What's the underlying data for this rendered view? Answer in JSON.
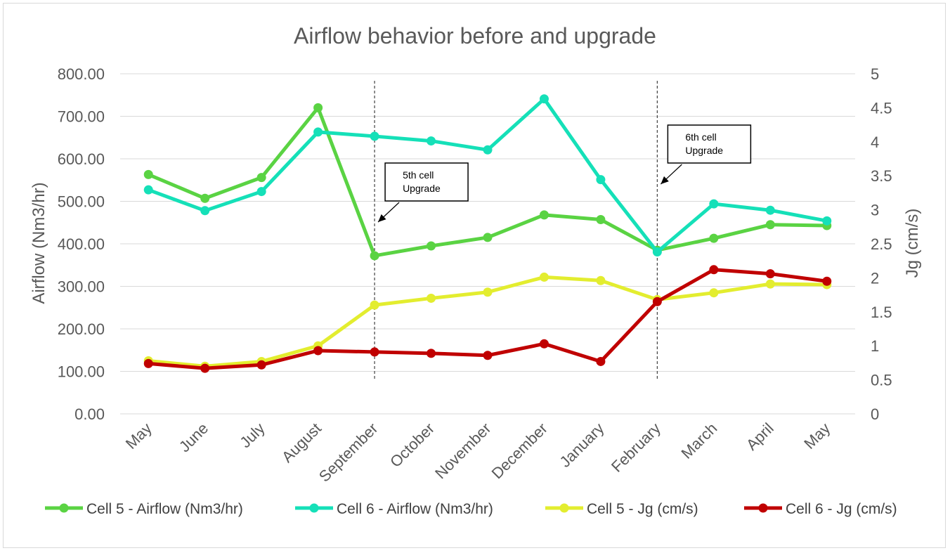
{
  "chart_data": {
    "type": "line",
    "title": "Airflow behavior before and upgrade",
    "categories": [
      "May",
      "June",
      "July",
      "August",
      "September",
      "October",
      "November",
      "December",
      "January",
      "February",
      "March",
      "April",
      "May"
    ],
    "y_left": {
      "label": "Airflow (Nm3/hr)",
      "min": 0,
      "max": 800,
      "step": 100,
      "ticks": [
        "0.00",
        "100.00",
        "200.00",
        "300.00",
        "400.00",
        "500.00",
        "600.00",
        "700.00",
        "800.00"
      ]
    },
    "y_right": {
      "label": "Jg (cm/s)",
      "min": 0,
      "max": 5,
      "step": 0.5,
      "ticks": [
        "0",
        "0.5",
        "1",
        "1.5",
        "2",
        "2.5",
        "3",
        "3.5",
        "4",
        "4.5",
        "5"
      ]
    },
    "gridlines": true,
    "legend_position": "bottom",
    "series": [
      {
        "name": "Cell 5 - Airflow (Nm3/hr)",
        "axis": "left",
        "color": "#5ad343",
        "values": [
          563,
          507,
          556,
          720,
          372,
          395,
          415,
          468,
          457,
          385,
          413,
          445,
          443
        ]
      },
      {
        "name": "Cell 6 - Airflow (Nm3/hr)",
        "axis": "left",
        "color": "#15e0b8",
        "values": [
          527,
          478,
          523,
          663,
          653,
          642,
          621,
          741,
          551,
          381,
          494,
          479,
          454
        ]
      },
      {
        "name": "Cell 5 - Jg (cm/s)",
        "axis": "right",
        "color": "#e3ed2f",
        "values": [
          0.78,
          0.7,
          0.77,
          1.0,
          1.6,
          1.7,
          1.79,
          2.01,
          1.96,
          1.68,
          1.78,
          1.91,
          1.9
        ]
      },
      {
        "name": "Cell 6 - Jg (cm/s)",
        "axis": "right",
        "color": "#c00000",
        "values": [
          0.74,
          0.67,
          0.72,
          0.93,
          0.91,
          0.89,
          0.86,
          1.03,
          0.77,
          1.65,
          2.12,
          2.06,
          1.95
        ]
      }
    ],
    "annotations": [
      {
        "text_lines": [
          "5th cell",
          "Upgrade"
        ],
        "category_index": 4
      },
      {
        "text_lines": [
          "6th cell",
          "Upgrade"
        ],
        "category_index": 9
      }
    ]
  }
}
